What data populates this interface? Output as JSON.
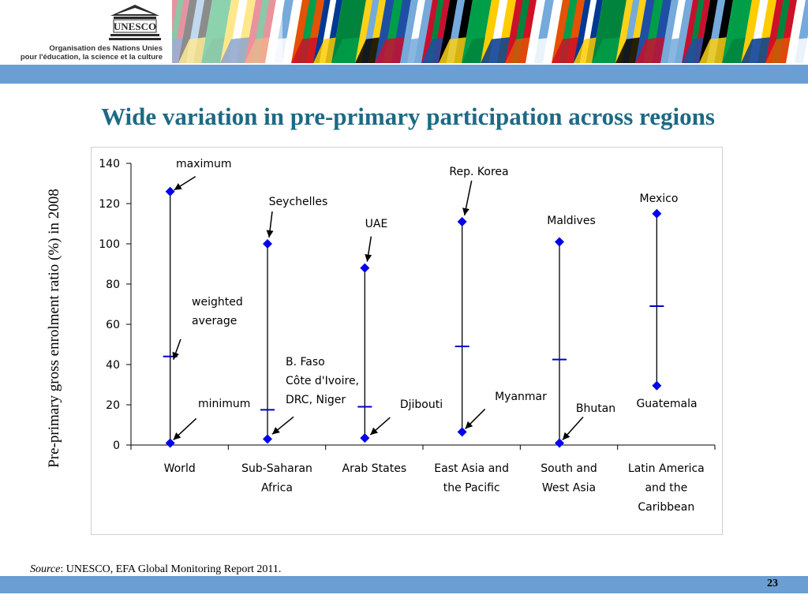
{
  "header": {
    "logo_text": "UNESCO",
    "org_line1": "Organisation des Nations Unies",
    "org_line2": "pour l'éducation, la science et la culture"
  },
  "slide": {
    "title": "Wide variation in pre-primary participation across regions",
    "source_label": "Source",
    "source_text": ": UNESCO, EFA Global Monitoring Report 2011.",
    "page_number": "23"
  },
  "colors": {
    "title": "#1c6a84",
    "bars": "#6b9ed3",
    "marker": "#0000ee",
    "average": "#0000cc"
  },
  "chart_data": {
    "type": "high-low",
    "ylabel": "Pre-primary gross enrolment ratio (%) in 2008",
    "ylim": [
      0,
      140
    ],
    "yticks": [
      0,
      20,
      40,
      60,
      80,
      100,
      120,
      140
    ],
    "categories": [
      [
        "World"
      ],
      [
        "Sub-Saharan",
        "Africa"
      ],
      [
        "Arab States"
      ],
      [
        "East Asia and",
        "the Pacific"
      ],
      [
        "South and",
        "West Asia"
      ],
      [
        "Latin America",
        "and the",
        "Caribbean"
      ]
    ],
    "series": [
      {
        "name": "maximum",
        "values": [
          126,
          100,
          88,
          111,
          101,
          115
        ]
      },
      {
        "name": "weighted average",
        "values": [
          44,
          17.5,
          19,
          49,
          42.5,
          69
        ]
      },
      {
        "name": "minimum",
        "values": [
          1,
          3,
          3.5,
          6.5,
          1,
          29.5
        ]
      }
    ],
    "annotations": [
      {
        "lines": [
          "maximum"
        ]
      },
      {
        "lines": [
          "weighted",
          "average"
        ]
      },
      {
        "lines": [
          "minimum"
        ]
      },
      {
        "lines": [
          "Seychelles"
        ]
      },
      {
        "lines": [
          "B. Faso",
          "Côte d'Ivoire,",
          "DRC, Niger"
        ]
      },
      {
        "lines": [
          "UAE"
        ]
      },
      {
        "lines": [
          "Djibouti"
        ]
      },
      {
        "lines": [
          "Rep. Korea"
        ]
      },
      {
        "lines": [
          "Myanmar"
        ]
      },
      {
        "lines": [
          "Maldives"
        ]
      },
      {
        "lines": [
          "Bhutan"
        ]
      },
      {
        "lines": [
          "Mexico"
        ]
      },
      {
        "lines": [
          "Guatemala"
        ]
      }
    ]
  }
}
